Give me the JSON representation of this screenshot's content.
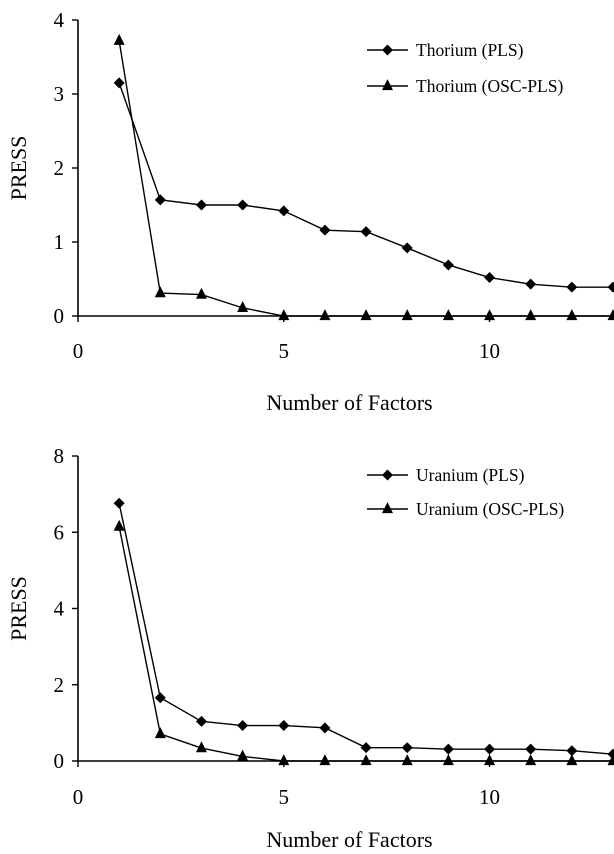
{
  "chart_data": [
    {
      "type": "line",
      "title": "",
      "xlabel": "Number of Factors",
      "ylabel": "PRESS",
      "xlim": [
        0,
        13
      ],
      "ylim": [
        0,
        4
      ],
      "xticks": [
        0,
        5,
        10
      ],
      "yticks": [
        0,
        1,
        2,
        3,
        4
      ],
      "legend_position": "top-right",
      "series": [
        {
          "name": "Thorium (PLS)",
          "marker": "diamond",
          "x": [
            1,
            2,
            3,
            4,
            5,
            6,
            7,
            8,
            9,
            10,
            11,
            12,
            13
          ],
          "y": [
            3.15,
            1.57,
            1.5,
            1.5,
            1.42,
            1.16,
            1.14,
            0.92,
            0.69,
            0.52,
            0.43,
            0.39,
            0.39
          ]
        },
        {
          "name": "Thorium (OSC-PLS)",
          "marker": "triangle",
          "x": [
            1,
            2,
            3,
            4,
            5,
            6,
            7,
            8,
            9,
            10,
            11,
            12,
            13
          ],
          "y": [
            3.72,
            0.31,
            0.29,
            0.11,
            0.0,
            0.0,
            0.0,
            0.0,
            0.0,
            0.0,
            0.0,
            0.0,
            0.0
          ]
        }
      ]
    },
    {
      "type": "line",
      "title": "",
      "xlabel": "Number of Factors",
      "ylabel": "PRESS",
      "xlim": [
        0,
        13
      ],
      "ylim": [
        0,
        8
      ],
      "xticks": [
        0,
        5,
        10
      ],
      "yticks": [
        0,
        2,
        4,
        6,
        8
      ],
      "legend_position": "top-right",
      "series": [
        {
          "name": "Uranium (PLS)",
          "marker": "diamond",
          "x": [
            1,
            2,
            3,
            4,
            5,
            6,
            7,
            8,
            9,
            10,
            11,
            12,
            13
          ],
          "y": [
            6.76,
            1.66,
            1.04,
            0.93,
            0.93,
            0.87,
            0.35,
            0.35,
            0.31,
            0.31,
            0.31,
            0.27,
            0.18
          ]
        },
        {
          "name": "Uranium (OSC-PLS)",
          "marker": "triangle",
          "x": [
            1,
            2,
            3,
            4,
            5,
            6,
            7,
            8,
            9,
            10,
            11,
            12,
            13
          ],
          "y": [
            6.15,
            0.71,
            0.34,
            0.12,
            0.0,
            0.0,
            0.0,
            0.0,
            0.0,
            0.0,
            0.0,
            0.0,
            0.0
          ]
        }
      ]
    }
  ]
}
